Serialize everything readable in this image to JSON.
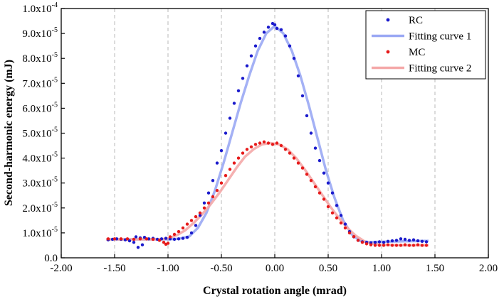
{
  "chart_data": {
    "type": "scatter",
    "xlabel": "Crystal rotation angle (mrad)",
    "ylabel": "Second-harmonic energy (mJ)",
    "xlim": [
      -2.0,
      2.0
    ],
    "ylim": [
      0,
      0.0001
    ],
    "x_ticks": [
      -2.0,
      -1.5,
      -1.0,
      -0.5,
      0.0,
      0.5,
      1.0,
      1.5,
      2.0
    ],
    "x_tick_labels": [
      "-2.00",
      "-1.50",
      "-1.00",
      "-0.50",
      "0.00",
      "0.50",
      "1.00",
      "1.50",
      "2.00"
    ],
    "y_ticks": [
      0,
      1e-05,
      2e-05,
      3e-05,
      4e-05,
      5e-05,
      6e-05,
      7e-05,
      8e-05,
      9e-05,
      0.0001
    ],
    "y_tick_labels": [
      {
        "mantissa": "0.0",
        "exp": ""
      },
      {
        "mantissa": "1.0x10",
        "exp": "-5"
      },
      {
        "mantissa": "2.0x10",
        "exp": "-5"
      },
      {
        "mantissa": "3.0x10",
        "exp": "-5"
      },
      {
        "mantissa": "4.0x10",
        "exp": "-5"
      },
      {
        "mantissa": "5.0x10",
        "exp": "-5"
      },
      {
        "mantissa": "6.0x10",
        "exp": "-5"
      },
      {
        "mantissa": "7.0x10",
        "exp": "-5"
      },
      {
        "mantissa": "8.0x10",
        "exp": "-5"
      },
      {
        "mantissa": "9.0x10",
        "exp": "-5"
      },
      {
        "mantissa": "1.0x10",
        "exp": "-4"
      }
    ],
    "grid": "vertical-dashed",
    "legend": "top-right",
    "series": [
      {
        "name": "RC",
        "kind": "scatter",
        "color": "#1a1acc",
        "x": [
          -1.56,
          -1.52,
          -1.48,
          -1.44,
          -1.4,
          -1.36,
          -1.32,
          -1.3,
          -1.28,
          -1.26,
          -1.24,
          -1.22,
          -1.18,
          -1.14,
          -1.1,
          -1.06,
          -1.02,
          -0.98,
          -0.94,
          -0.9,
          -0.86,
          -0.82,
          -0.78,
          -0.74,
          -0.7,
          -0.66,
          -0.62,
          -0.58,
          -0.54,
          -0.5,
          -0.46,
          -0.42,
          -0.38,
          -0.34,
          -0.3,
          -0.26,
          -0.22,
          -0.18,
          -0.14,
          -0.1,
          -0.06,
          -0.02,
          0.0,
          0.02,
          0.06,
          0.1,
          0.14,
          0.18,
          0.22,
          0.26,
          0.3,
          0.34,
          0.38,
          0.42,
          0.46,
          0.5,
          0.54,
          0.58,
          0.62,
          0.66,
          0.7,
          0.74,
          0.78,
          0.82,
          0.86,
          0.9,
          0.94,
          0.98,
          1.02,
          1.06,
          1.1,
          1.14,
          1.18,
          1.22,
          1.26,
          1.3,
          1.34,
          1.38,
          1.42
        ],
        "y": [
          7.2e-06,
          7.4e-06,
          7.6e-06,
          7.4e-06,
          7.2e-06,
          6.8e-06,
          6.2e-06,
          8.4e-06,
          4.2e-06,
          8e-06,
          5.2e-06,
          8.2e-06,
          7.6e-06,
          7.8e-06,
          7.4e-06,
          7.6e-06,
          7.8e-06,
          7.6e-06,
          7.4e-06,
          7.6e-06,
          7.8e-06,
          8.2e-06,
          1e-05,
          1.3e-05,
          1.7e-05,
          2.2e-05,
          2.6e-05,
          3.1e-05,
          3.8e-05,
          4.3e-05,
          5e-05,
          5.6e-05,
          6.2e-05,
          6.7e-05,
          7.2e-05,
          7.7e-05,
          8.1e-05,
          8.5e-05,
          8.8e-05,
          9.05e-05,
          9.25e-05,
          9.4e-05,
          9.35e-05,
          9.2e-05,
          9.15e-05,
          8.9e-05,
          8.5e-05,
          8e-05,
          7.3e-05,
          6.5e-05,
          5.7e-05,
          5e-05,
          4.4e-05,
          3.9e-05,
          3.4e-05,
          3e-05,
          2.6e-05,
          2.1e-05,
          1.7e-05,
          1.35e-05,
          1.05e-05,
          8.4e-06,
          7e-06,
          6.4e-06,
          6.2e-06,
          6e-06,
          6.2e-06,
          6.4e-06,
          6.2e-06,
          6.6e-06,
          6.8e-06,
          7e-06,
          7.6e-06,
          7.4e-06,
          7e-06,
          7.2e-06,
          6.8e-06,
          6.6e-06,
          6.4e-06
        ]
      },
      {
        "name": "Fitting curve 1",
        "kind": "line",
        "color": "#9aa8f4",
        "x": [
          -1.58,
          -1.4,
          -1.2,
          -1.0,
          -0.9,
          -0.8,
          -0.72,
          -0.64,
          -0.56,
          -0.48,
          -0.4,
          -0.32,
          -0.24,
          -0.16,
          -0.08,
          0.0,
          0.08,
          0.16,
          0.24,
          0.32,
          0.4,
          0.48,
          0.56,
          0.64,
          0.72,
          0.8,
          0.88,
          1.0,
          1.2,
          1.44
        ],
        "y": [
          7.4e-06,
          7.4e-06,
          7.4e-06,
          7.4e-06,
          7.6e-06,
          8.6e-06,
          1.2e-05,
          1.8e-05,
          2.7e-05,
          3.8e-05,
          5e-05,
          6.2e-05,
          7.3e-05,
          8.3e-05,
          9e-05,
          9.3e-05,
          9e-05,
          8.3e-05,
          7.3e-05,
          6.1e-05,
          4.8e-05,
          3.5e-05,
          2.4e-05,
          1.5e-05,
          9.5e-06,
          6.8e-06,
          6.3e-06,
          6.4e-06,
          6.6e-06,
          6.8e-06
        ]
      },
      {
        "name": "MC",
        "kind": "scatter",
        "color": "#e61a1a",
        "x": [
          -1.56,
          -1.5,
          -1.44,
          -1.38,
          -1.32,
          -1.26,
          -1.2,
          -1.14,
          -1.08,
          -1.04,
          -1.02,
          -1.0,
          -0.98,
          -0.94,
          -0.9,
          -0.86,
          -0.82,
          -0.78,
          -0.74,
          -0.7,
          -0.66,
          -0.62,
          -0.58,
          -0.54,
          -0.5,
          -0.46,
          -0.42,
          -0.38,
          -0.34,
          -0.3,
          -0.26,
          -0.22,
          -0.18,
          -0.14,
          -0.1,
          -0.06,
          -0.02,
          0.02,
          0.06,
          0.1,
          0.14,
          0.18,
          0.22,
          0.26,
          0.3,
          0.34,
          0.38,
          0.42,
          0.46,
          0.5,
          0.54,
          0.58,
          0.62,
          0.66,
          0.7,
          0.74,
          0.78,
          0.82,
          0.86,
          0.9,
          0.94,
          0.98,
          1.02,
          1.06,
          1.1,
          1.14,
          1.18,
          1.22,
          1.26,
          1.3,
          1.34,
          1.38,
          1.42
        ],
        "y": [
          7.6e-06,
          7.6e-06,
          7.6e-06,
          7.6e-06,
          7.4e-06,
          7.6e-06,
          7.6e-06,
          7.4e-06,
          7e-06,
          6.2e-06,
          5.4e-06,
          5.8e-06,
          8.4e-06,
          9.4e-06,
          1.05e-05,
          1.2e-05,
          1.35e-05,
          1.5e-05,
          1.65e-05,
          1.8e-05,
          2e-05,
          2.2e-05,
          2.45e-05,
          2.7e-05,
          3e-05,
          3.3e-05,
          3.55e-05,
          3.8e-05,
          4e-05,
          4.2e-05,
          4.35e-05,
          4.45e-05,
          4.55e-05,
          4.6e-05,
          4.65e-05,
          4.6e-05,
          4.55e-05,
          4.6e-05,
          4.5e-05,
          4.35e-05,
          4.2e-05,
          4e-05,
          3.8e-05,
          3.6e-05,
          3.35e-05,
          3.1e-05,
          2.85e-05,
          2.6e-05,
          2.35e-05,
          2.05e-05,
          1.8e-05,
          1.6e-05,
          1.4e-05,
          1.2e-05,
          1e-05,
          8.5e-06,
          7e-06,
          6.2e-06,
          5.6e-06,
          5.2e-06,
          5e-06,
          5e-06,
          5e-06,
          5.2e-06,
          5e-06,
          5e-06,
          5e-06,
          5.2e-06,
          5e-06,
          5e-06,
          5.2e-06,
          5e-06,
          5e-06
        ]
      },
      {
        "name": "Fitting curve 2",
        "kind": "line",
        "color": "#f4a8a8",
        "x": [
          -1.58,
          -1.4,
          -1.2,
          -1.06,
          -1.0,
          -0.92,
          -0.84,
          -0.76,
          -0.68,
          -0.6,
          -0.52,
          -0.44,
          -0.36,
          -0.28,
          -0.2,
          -0.12,
          -0.04,
          0.04,
          0.12,
          0.2,
          0.28,
          0.36,
          0.44,
          0.52,
          0.6,
          0.68,
          0.76,
          0.84,
          0.92,
          1.0,
          1.2,
          1.44
        ],
        "y": [
          7.4e-06,
          7.4e-06,
          7.4e-06,
          7.4e-06,
          7.8e-06,
          9e-06,
          1.1e-05,
          1.4e-05,
          1.75e-05,
          2.15e-05,
          2.6e-05,
          3.1e-05,
          3.6e-05,
          4.05e-05,
          4.35e-05,
          4.55e-05,
          4.6e-05,
          4.55e-05,
          4.35e-05,
          4e-05,
          3.55e-05,
          3.05e-05,
          2.55e-05,
          2.05e-05,
          1.6e-05,
          1.2e-05,
          8.8e-06,
          6.6e-06,
          5.6e-06,
          5.2e-06,
          5e-06,
          5e-06
        ]
      }
    ]
  }
}
